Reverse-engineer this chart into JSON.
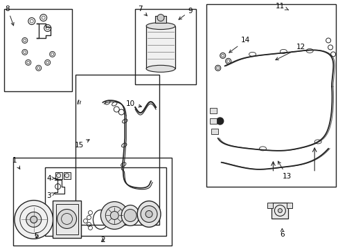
{
  "background_color": "#ffffff",
  "fig_width": 4.89,
  "fig_height": 3.6,
  "dpi": 100,
  "line_color": "#222222",
  "text_color": "#000000",
  "font_size": 7.5
}
